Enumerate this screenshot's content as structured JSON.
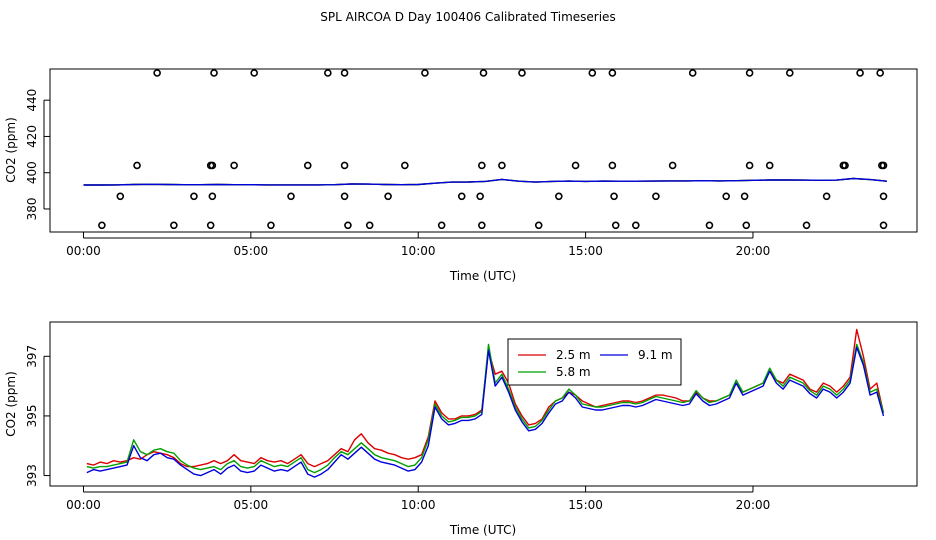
{
  "title": "SPL AIRCOA D  Day 100406  Calibrated Timeseries",
  "colors": {
    "red": "#dd0000",
    "green": "#00a000",
    "blue": "#0000dd",
    "axis": "#000000"
  },
  "chart_data": [
    {
      "type": "scatter",
      "title": "SPL AIRCOA D  Day 100406  Calibrated Timeseries",
      "xlabel": "Time (UTC)",
      "ylabel": "CO2 (ppm)",
      "xlim": [
        -1.0,
        24.9
      ],
      "ylim": [
        367.3,
        457.2
      ],
      "xticks": [
        0,
        5,
        10,
        15,
        20
      ],
      "xtick_labels": [
        "00:00",
        "05:00",
        "10:00",
        "15:00",
        "20:00"
      ],
      "yticks": [
        380,
        400,
        420,
        440
      ],
      "ytick_labels": [
        "380",
        "400",
        "420",
        "440"
      ],
      "calibration_points": {
        "marker": "open-circle",
        "levels_ppm": [
          371,
          387,
          404,
          455
        ],
        "hours_371": [
          0.55,
          2.7,
          3.8,
          5.6,
          7.9,
          8.55,
          10.7,
          11.9,
          13.6,
          15.9,
          16.5,
          18.7,
          19.8,
          21.6,
          23.9
        ],
        "hours_387": [
          1.1,
          3.3,
          3.85,
          6.2,
          7.8,
          9.1,
          11.3,
          11.85,
          14.2,
          15.85,
          17.1,
          19.2,
          19.75,
          22.2,
          23.9
        ],
        "hours_404": [
          1.6,
          3.8,
          3.85,
          4.5,
          6.7,
          7.8,
          9.6,
          11.9,
          12.5,
          14.7,
          15.8,
          17.6,
          19.9,
          20.5,
          22.7,
          22.75,
          23.85,
          23.9
        ],
        "hours_455": [
          2.2,
          3.9,
          5.1,
          7.3,
          7.8,
          10.2,
          11.95,
          13.1,
          15.2,
          15.8,
          18.2,
          19.9,
          21.1,
          23.2,
          23.8
        ]
      },
      "series_hours": [
        0,
        0.5,
        1,
        1.5,
        2,
        2.5,
        3,
        3.5,
        4,
        4.5,
        5,
        5.5,
        6,
        6.5,
        7,
        7.5,
        8,
        8.5,
        9,
        9.5,
        10,
        10.5,
        11,
        11.5,
        12,
        12.5,
        13,
        13.5,
        14,
        14.5,
        15,
        15.5,
        16,
        16.5,
        17,
        17.5,
        18,
        18.5,
        19,
        19.5,
        20,
        20.5,
        21,
        21.5,
        22,
        22.5,
        23,
        23.5,
        24
      ],
      "series": [
        {
          "name": "9.1 m",
          "color": "#0000dd",
          "values": [
            393.2,
            393.2,
            393.3,
            393.5,
            393.6,
            393.5,
            393.4,
            393.4,
            393.5,
            393.4,
            393.4,
            393.3,
            393.3,
            393.3,
            393.3,
            393.4,
            393.8,
            393.7,
            393.5,
            393.4,
            393.5,
            394.2,
            394.8,
            394.9,
            395.2,
            396.3,
            395.3,
            394.8,
            395.2,
            395.4,
            395.2,
            395.4,
            395.3,
            395.3,
            395.4,
            395.5,
            395.5,
            395.6,
            395.5,
            395.6,
            395.8,
            396.0,
            396.0,
            395.9,
            395.8,
            395.9,
            396.8,
            396.2,
            395.3
          ]
        }
      ]
    },
    {
      "type": "line",
      "xlabel": "Time (UTC)",
      "ylabel": "CO2 (ppm)",
      "xlim": [
        -1.0,
        24.9
      ],
      "ylim": [
        392.65,
        398.15
      ],
      "xticks": [
        0,
        5,
        10,
        15,
        20
      ],
      "xtick_labels": [
        "00:00",
        "05:00",
        "10:00",
        "15:00",
        "20:00"
      ],
      "yticks": [
        393,
        395,
        397
      ],
      "ytick_labels": [
        "393",
        "395",
        "397"
      ],
      "legend": {
        "position": "top-center"
      },
      "x": [
        0.1,
        0.3,
        0.5,
        0.7,
        0.9,
        1.1,
        1.3,
        1.5,
        1.7,
        1.9,
        2.1,
        2.3,
        2.5,
        2.7,
        2.9,
        3.1,
        3.3,
        3.5,
        3.7,
        3.9,
        4.1,
        4.3,
        4.5,
        4.7,
        4.9,
        5.1,
        5.3,
        5.5,
        5.7,
        5.9,
        6.1,
        6.3,
        6.5,
        6.7,
        6.9,
        7.1,
        7.3,
        7.5,
        7.7,
        7.9,
        8.1,
        8.3,
        8.5,
        8.7,
        8.9,
        9.1,
        9.3,
        9.5,
        9.7,
        9.9,
        10.1,
        10.3,
        10.5,
        10.7,
        10.9,
        11.1,
        11.3,
        11.5,
        11.7,
        11.9,
        12.1,
        12.3,
        12.5,
        12.7,
        12.9,
        13.1,
        13.3,
        13.5,
        13.7,
        13.9,
        14.1,
        14.3,
        14.5,
        14.7,
        14.9,
        15.1,
        15.3,
        15.5,
        15.7,
        15.9,
        16.1,
        16.3,
        16.5,
        16.7,
        16.9,
        17.1,
        17.3,
        17.5,
        17.7,
        17.9,
        18.1,
        18.3,
        18.5,
        18.7,
        18.9,
        19.1,
        19.3,
        19.5,
        19.7,
        19.9,
        20.1,
        20.3,
        20.5,
        20.7,
        20.9,
        21.1,
        21.3,
        21.5,
        21.7,
        21.9,
        22.1,
        22.3,
        22.5,
        22.7,
        22.9,
        23.1,
        23.3,
        23.5,
        23.7,
        23.9
      ],
      "series": [
        {
          "name": "2.5 m",
          "color": "#dd0000",
          "values": [
            393.4,
            393.35,
            393.45,
            393.4,
            393.5,
            393.45,
            393.5,
            393.6,
            393.55,
            393.7,
            393.8,
            393.75,
            393.7,
            393.6,
            393.4,
            393.3,
            393.3,
            393.35,
            393.4,
            393.5,
            393.4,
            393.5,
            393.7,
            393.5,
            393.45,
            393.4,
            393.6,
            393.5,
            393.45,
            393.5,
            393.4,
            393.55,
            393.7,
            393.4,
            393.3,
            393.4,
            393.5,
            393.7,
            393.9,
            393.8,
            394.2,
            394.4,
            394.1,
            393.9,
            393.85,
            393.75,
            393.7,
            393.6,
            393.55,
            393.6,
            393.7,
            394.3,
            395.5,
            395.1,
            394.9,
            394.9,
            395.0,
            395.0,
            395.05,
            395.2,
            397.2,
            396.4,
            396.5,
            396.1,
            395.4,
            395.0,
            394.7,
            394.75,
            394.9,
            395.3,
            395.5,
            395.6,
            395.8,
            395.7,
            395.5,
            395.4,
            395.3,
            395.35,
            395.4,
            395.45,
            395.5,
            395.5,
            395.45,
            395.5,
            395.6,
            395.7,
            395.7,
            395.65,
            395.6,
            395.5,
            395.5,
            395.8,
            395.6,
            395.5,
            395.5,
            395.6,
            395.7,
            396.1,
            395.8,
            395.9,
            396.0,
            396.1,
            396.5,
            396.2,
            396.1,
            396.4,
            396.3,
            396.2,
            395.9,
            395.8,
            396.1,
            396.0,
            395.8,
            396.0,
            396.3,
            397.9,
            397.0,
            395.9,
            396.1,
            395.1
          ]
        },
        {
          "name": "5.8 m",
          "color": "#00a000",
          "values": [
            393.3,
            393.25,
            393.3,
            393.3,
            393.35,
            393.4,
            393.45,
            394.2,
            393.8,
            393.7,
            393.85,
            393.9,
            393.8,
            393.75,
            393.5,
            393.35,
            393.25,
            393.2,
            393.25,
            393.3,
            393.2,
            393.4,
            393.5,
            393.3,
            393.25,
            393.3,
            393.5,
            393.4,
            393.3,
            393.35,
            393.3,
            393.45,
            393.6,
            393.2,
            393.1,
            393.2,
            393.35,
            393.6,
            393.8,
            393.7,
            393.9,
            394.1,
            393.9,
            393.7,
            393.6,
            393.55,
            393.5,
            393.4,
            393.3,
            393.35,
            393.6,
            394.2,
            395.4,
            395.0,
            394.8,
            394.85,
            394.95,
            394.95,
            395.0,
            395.15,
            397.4,
            396.1,
            396.4,
            395.9,
            395.3,
            394.9,
            394.6,
            394.65,
            394.85,
            395.2,
            395.5,
            395.6,
            395.9,
            395.7,
            395.4,
            395.35,
            395.3,
            395.3,
            395.35,
            395.4,
            395.45,
            395.45,
            395.4,
            395.45,
            395.55,
            395.65,
            395.6,
            395.55,
            395.5,
            395.45,
            395.5,
            395.85,
            395.6,
            395.45,
            395.5,
            395.6,
            395.7,
            396.2,
            395.8,
            395.9,
            396.0,
            396.1,
            396.6,
            396.2,
            396.0,
            396.3,
            396.2,
            396.1,
            395.85,
            395.7,
            396.0,
            395.9,
            395.7,
            395.9,
            396.2,
            397.4,
            396.8,
            395.8,
            395.9,
            395.1
          ]
        },
        {
          "name": "9.1 m",
          "color": "#0000dd",
          "values": [
            393.1,
            393.2,
            393.15,
            393.2,
            393.25,
            393.3,
            393.35,
            394.0,
            393.6,
            393.5,
            393.7,
            393.75,
            393.6,
            393.55,
            393.35,
            393.2,
            393.05,
            393.0,
            393.1,
            393.2,
            393.05,
            393.25,
            393.35,
            393.15,
            393.1,
            393.15,
            393.35,
            393.25,
            393.15,
            393.2,
            393.15,
            393.3,
            393.45,
            393.05,
            392.95,
            393.05,
            393.2,
            393.45,
            393.7,
            393.55,
            393.75,
            393.95,
            393.75,
            393.55,
            393.45,
            393.4,
            393.35,
            393.25,
            393.15,
            393.2,
            393.45,
            394.0,
            395.3,
            394.9,
            394.7,
            394.75,
            394.85,
            394.85,
            394.9,
            395.05,
            397.2,
            396.0,
            396.3,
            395.8,
            395.2,
            394.8,
            394.5,
            394.55,
            394.75,
            395.1,
            395.4,
            395.5,
            395.8,
            395.6,
            395.3,
            395.25,
            395.2,
            395.2,
            395.25,
            395.3,
            395.35,
            395.35,
            395.3,
            395.35,
            395.45,
            395.55,
            395.5,
            395.45,
            395.4,
            395.35,
            395.4,
            395.75,
            395.5,
            395.35,
            395.4,
            395.5,
            395.6,
            396.1,
            395.7,
            395.8,
            395.9,
            396.0,
            396.5,
            396.1,
            395.9,
            396.2,
            396.1,
            396.0,
            395.75,
            395.6,
            395.9,
            395.8,
            395.6,
            395.8,
            396.1,
            397.3,
            396.7,
            395.7,
            395.8,
            395.0
          ]
        }
      ]
    }
  ]
}
